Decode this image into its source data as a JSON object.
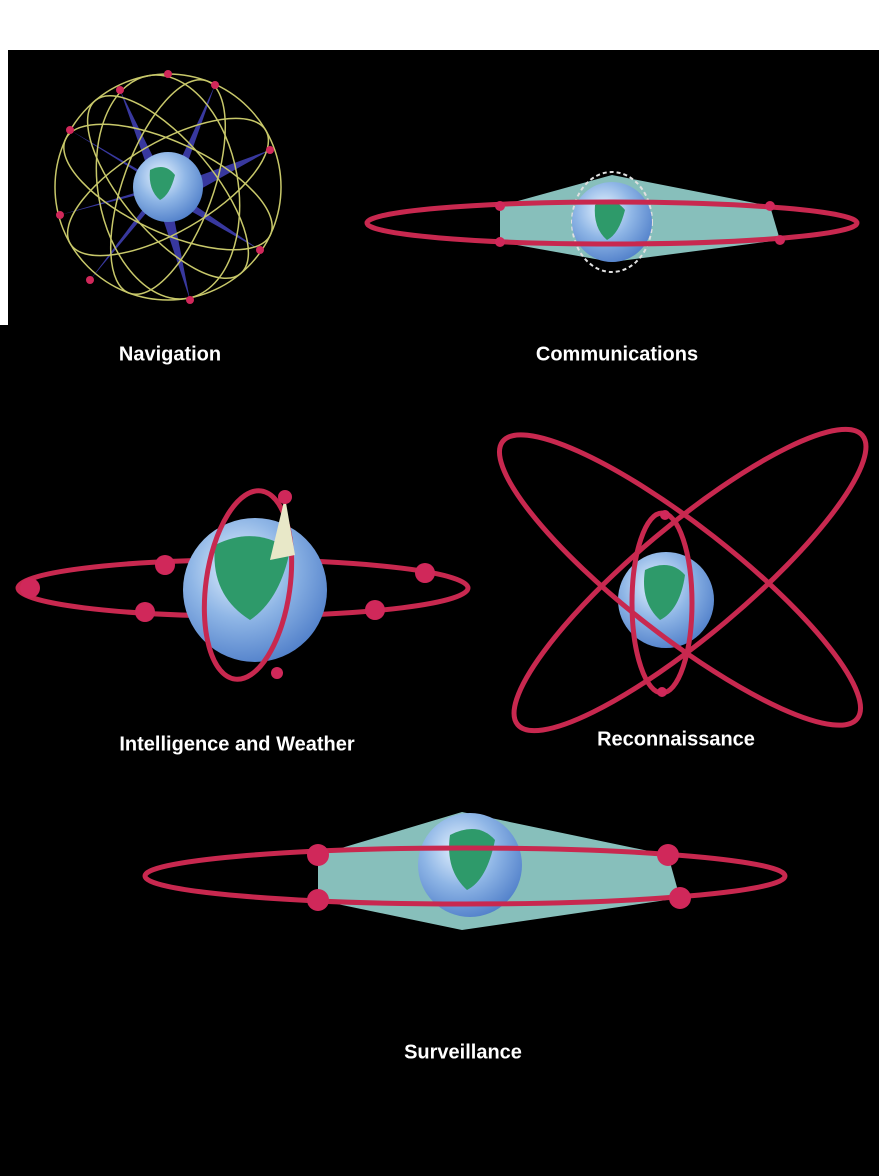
{
  "diagrams": [
    {
      "label": "Navigation"
    },
    {
      "label": "Communications"
    },
    {
      "label": "Intelligence and Weather"
    },
    {
      "label": "Reconnaissance"
    },
    {
      "label": "Surveillance"
    }
  ]
}
